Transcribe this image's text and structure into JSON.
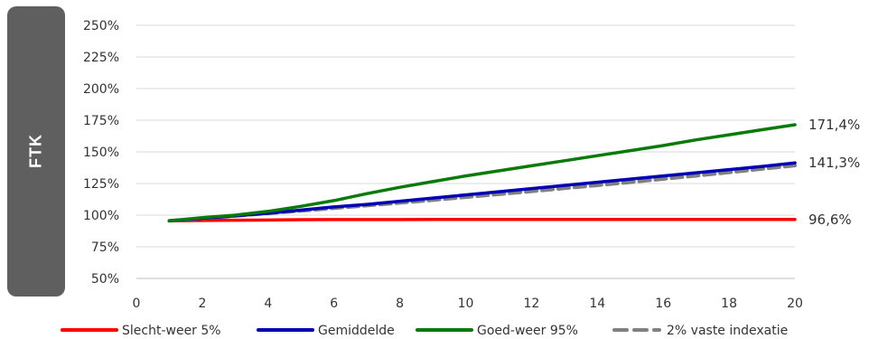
{
  "side_tab": {
    "label": "FTK"
  },
  "chart_data": {
    "type": "line",
    "title": "",
    "xlabel": "",
    "ylabel": "",
    "xlim": [
      0,
      20
    ],
    "ylim": [
      50,
      250
    ],
    "x_ticks": [
      0,
      2,
      4,
      6,
      8,
      10,
      12,
      14,
      16,
      18,
      20
    ],
    "x_tick_labels": [
      "0",
      "2",
      "4",
      "6",
      "8",
      "10",
      "12",
      "14",
      "16",
      "18",
      "20"
    ],
    "y_ticks": [
      50,
      75,
      100,
      125,
      150,
      175,
      200,
      225,
      250
    ],
    "y_tick_labels": [
      "50%",
      "75%",
      "100%",
      "125%",
      "150%",
      "175%",
      "200%",
      "225%",
      "250%"
    ],
    "grid": "horizontal",
    "legend_position": "bottom",
    "x": [
      1,
      2,
      3,
      4,
      5,
      6,
      7,
      8,
      9,
      10,
      11,
      12,
      13,
      14,
      15,
      16,
      17,
      18,
      19,
      20
    ],
    "series": [
      {
        "name": "Slecht-weer 5%",
        "color": "#ff0000",
        "style": "solid",
        "values": [
          95.5,
          95.8,
          96.0,
          96.2,
          96.4,
          96.5,
          96.5,
          96.5,
          96.6,
          96.6,
          96.6,
          96.6,
          96.6,
          96.6,
          96.6,
          96.6,
          96.6,
          96.6,
          96.6,
          96.6
        ],
        "end_label": "96,6%"
      },
      {
        "name": "Gemiddelde",
        "color": "#0000b4",
        "style": "solid",
        "values": [
          95.5,
          97.5,
          99.5,
          101.5,
          104.0,
          106.5,
          108.5,
          111.0,
          113.5,
          116.0,
          118.5,
          121.0,
          123.5,
          126.0,
          128.5,
          131.0,
          133.5,
          136.0,
          138.5,
          141.3
        ],
        "end_label": "141,3%"
      },
      {
        "name": "Goed-weer 95%",
        "color": "#0a7a0a",
        "style": "solid",
        "values": [
          95.5,
          98.0,
          100.0,
          103.0,
          107.0,
          111.5,
          117.0,
          122.0,
          126.5,
          131.0,
          135.0,
          139.0,
          143.0,
          147.0,
          151.0,
          155.0,
          159.5,
          163.5,
          167.5,
          171.4
        ],
        "end_label": "171,4%"
      },
      {
        "name": "2% vaste indexatie",
        "color": "#808080",
        "style": "dashed",
        "values": [
          95.5,
          97.4,
          99.4,
          101.4,
          103.4,
          105.5,
          107.6,
          109.7,
          111.9,
          114.2,
          116.5,
          118.8,
          121.2,
          123.6,
          126.0,
          128.6,
          131.1,
          133.8,
          136.5,
          139.2
        ]
      }
    ]
  }
}
